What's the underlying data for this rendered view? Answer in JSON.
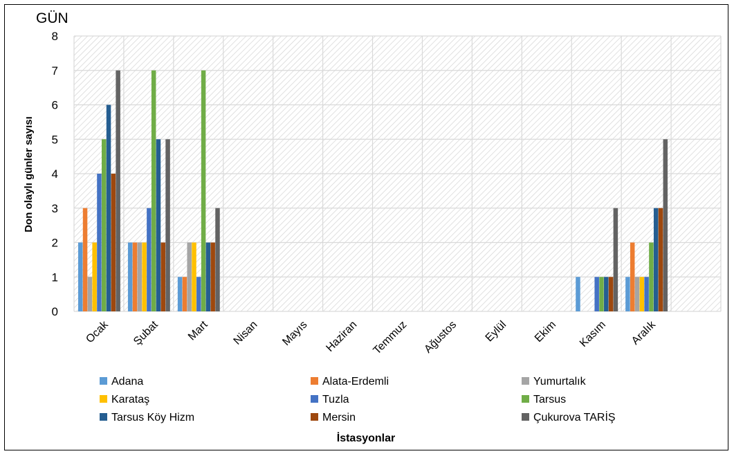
{
  "chart_data": {
    "type": "bar",
    "unit_label": "GÜN",
    "ylabel": "Don olaylı günler sayısı",
    "xlabel": "İstasyonlar",
    "ylim": [
      0,
      8
    ],
    "yticks": [
      0,
      1,
      2,
      3,
      4,
      5,
      6,
      7,
      8
    ],
    "grid": true,
    "legend_position": "bottom",
    "categories": [
      "Ocak",
      "Şubat",
      "Mart",
      "Nisan",
      "Mayıs",
      "Haziran",
      "Temmuz",
      "Ağustos",
      "Eylül",
      "Ekim",
      "Kasım",
      "Aralık"
    ],
    "series": [
      {
        "name": "Adana",
        "color": "#5B9BD5",
        "values": [
          2,
          2,
          1,
          0,
          0,
          0,
          0,
          0,
          0,
          0,
          1,
          1
        ]
      },
      {
        "name": "Alata-Erdemli",
        "color": "#ED7D31",
        "values": [
          3,
          2,
          1,
          0,
          0,
          0,
          0,
          0,
          0,
          0,
          0,
          2
        ]
      },
      {
        "name": "Yumurtalık",
        "color": "#A5A5A5",
        "values": [
          1,
          2,
          2,
          0,
          0,
          0,
          0,
          0,
          0,
          0,
          0,
          1
        ]
      },
      {
        "name": "Karataş",
        "color": "#FFC000",
        "values": [
          2,
          2,
          2,
          0,
          0,
          0,
          0,
          0,
          0,
          0,
          0,
          1
        ]
      },
      {
        "name": "Tuzla",
        "color": "#4472C4",
        "values": [
          4,
          3,
          1,
          0,
          0,
          0,
          0,
          0,
          0,
          0,
          1,
          1
        ]
      },
      {
        "name": "Tarsus",
        "color": "#70AD47",
        "values": [
          5,
          7,
          7,
          0,
          0,
          0,
          0,
          0,
          0,
          0,
          1,
          2
        ]
      },
      {
        "name": "Tarsus Köy Hizm",
        "color": "#255E91",
        "values": [
          6,
          5,
          2,
          0,
          0,
          0,
          0,
          0,
          0,
          0,
          1,
          3
        ]
      },
      {
        "name": "Mersin",
        "color": "#9E480E",
        "values": [
          4,
          2,
          2,
          0,
          0,
          0,
          0,
          0,
          0,
          0,
          1,
          3
        ]
      },
      {
        "name": "Çukurova TARİŞ",
        "color": "#636363",
        "values": [
          7,
          5,
          3,
          0,
          0,
          0,
          0,
          0,
          0,
          0,
          3,
          5
        ]
      }
    ]
  }
}
